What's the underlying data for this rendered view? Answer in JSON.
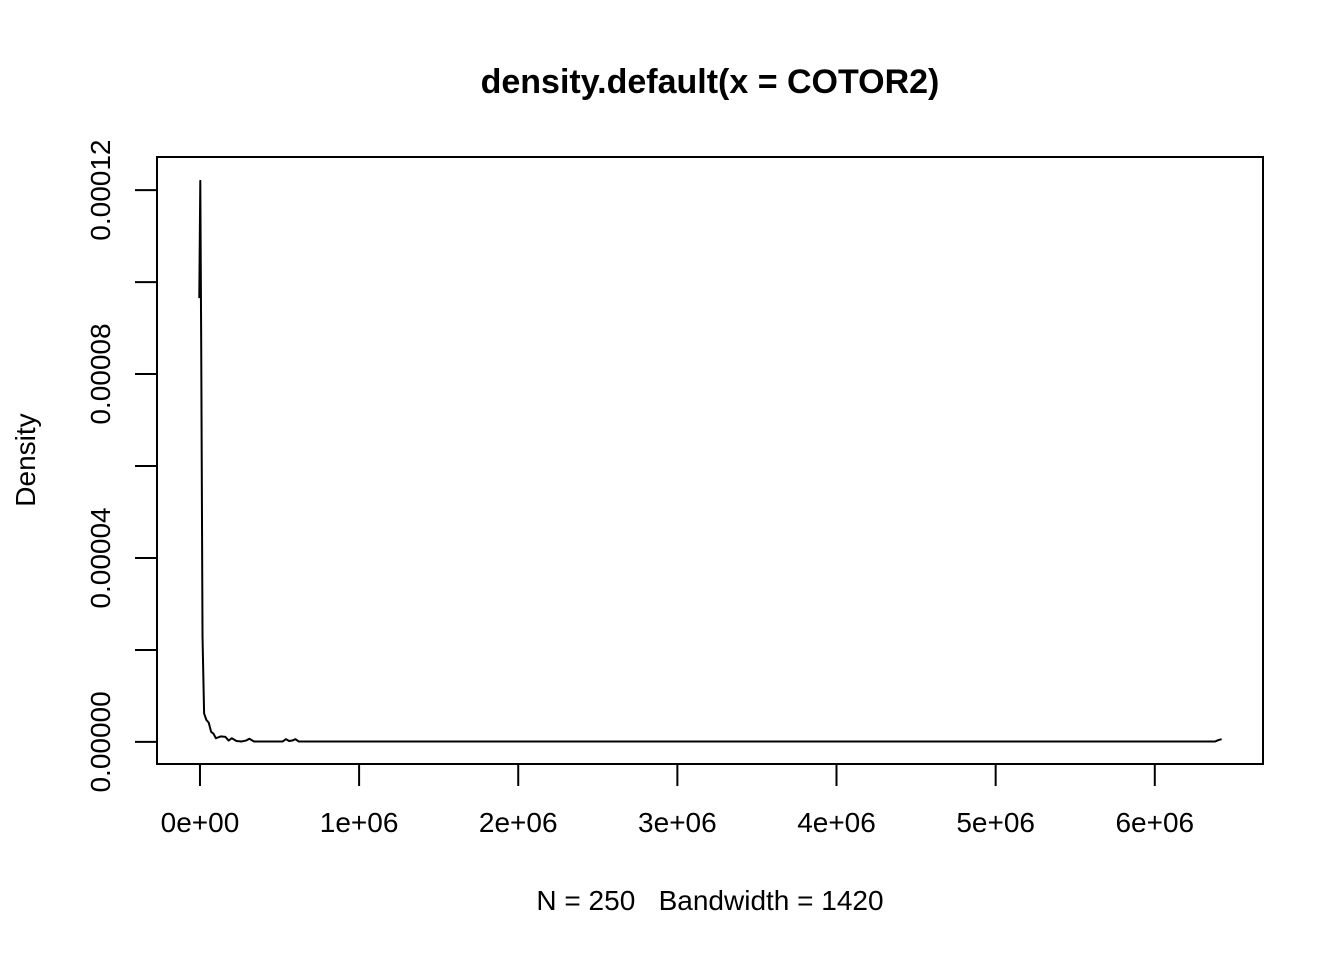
{
  "chart_data": {
    "type": "line",
    "title": "density.default(x = COTOR2)",
    "xlabel": "N = 250   Bandwidth = 1420",
    "ylabel": "Density",
    "xlim": [
      -270000,
      6680000
    ],
    "ylim": [
      -4.8e-06,
      0.0001272
    ],
    "x_ticks": [
      0,
      1000000,
      2000000,
      3000000,
      4000000,
      5000000,
      6000000
    ],
    "x_tick_labels": [
      "0e+00",
      "1e+06",
      "2e+06",
      "3e+06",
      "4e+06",
      "5e+06",
      "6e+06"
    ],
    "y_ticks": [
      0,
      2e-05,
      4e-05,
      6e-05,
      8e-05,
      0.0001,
      0.00012
    ],
    "y_tick_labels": [
      "0.00000",
      "",
      "0.00004",
      "",
      "0.00008",
      "",
      "0.00012"
    ],
    "grid": false,
    "series": [
      {
        "x": [
          -4300,
          2000,
          8000,
          16000,
          26000,
          40000,
          55000,
          70000,
          85000,
          100000,
          130000,
          160000,
          180000,
          200000,
          230000,
          260000,
          290000,
          310000,
          340000,
          380000,
          450000,
          520000,
          540000,
          560000,
          580000,
          600000,
          620000,
          650000,
          800000,
          1500000,
          3000000,
          5000000,
          6000000,
          6380000,
          6400000,
          6420000
        ],
        "y": [
          9.65e-05,
          0.000122,
          8.5e-05,
          2.3e-05,
          6.2e-06,
          4.8e-06,
          4.2e-06,
          2.2e-06,
          1.8e-06,
          8e-07,
          1.2e-06,
          1.1e-06,
          3e-07,
          8e-07,
          2e-07,
          1e-07,
          3e-07,
          7e-07,
          1e-07,
          1e-07,
          1e-07,
          1e-07,
          6e-07,
          2e-07,
          3e-07,
          6e-07,
          1e-07,
          1e-07,
          1e-07,
          1e-07,
          1e-07,
          1e-07,
          1e-07,
          1e-07,
          4e-07,
          6e-07
        ]
      }
    ]
  }
}
